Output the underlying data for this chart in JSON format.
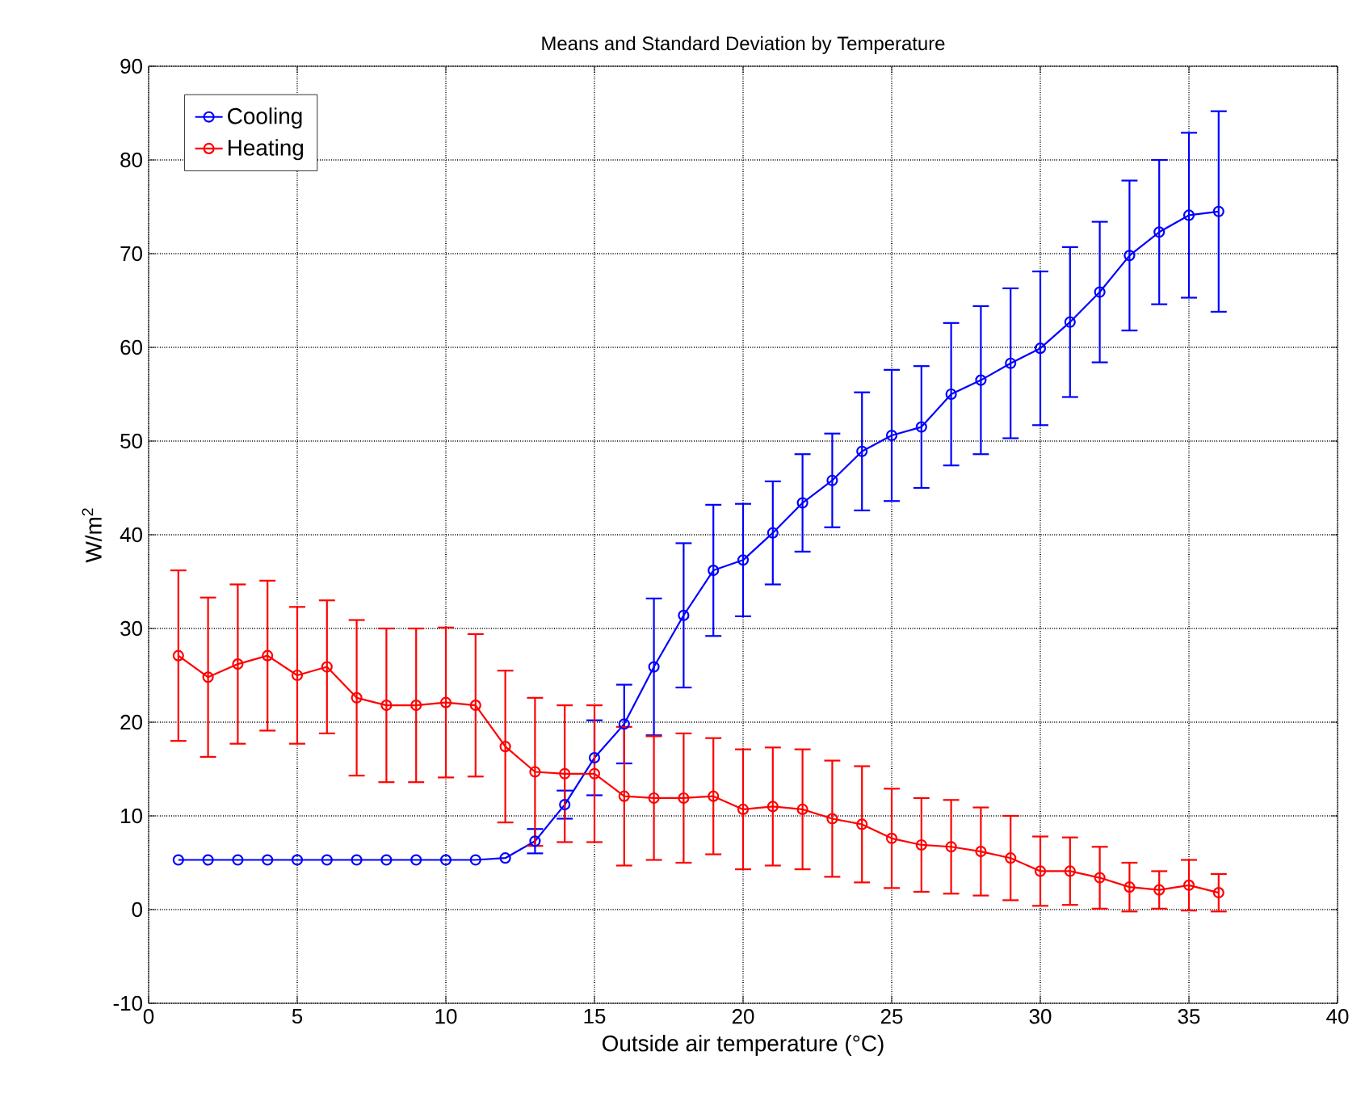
{
  "chart_data": {
    "type": "line",
    "title": "Means and Standard Deviation by Temperature",
    "xlabel": "Outside air temperature (°C)",
    "ylabel": "W/m$^{2}$",
    "x": [
      1,
      2,
      3,
      4,
      5,
      6,
      7,
      8,
      9,
      10,
      11,
      12,
      13,
      14,
      15,
      16,
      17,
      18,
      19,
      20,
      21,
      22,
      23,
      24,
      25,
      26,
      27,
      28,
      29,
      30,
      31,
      32,
      33,
      34,
      35,
      36
    ],
    "series": [
      {
        "name": "Cooling",
        "color": "#0000ff",
        "values": [
          5.3,
          5.3,
          5.3,
          5.3,
          5.3,
          5.3,
          5.3,
          5.3,
          5.3,
          5.3,
          5.3,
          5.5,
          7.3,
          11.2,
          16.2,
          19.8,
          25.9,
          31.4,
          36.2,
          37.3,
          40.2,
          43.4,
          45.8,
          48.9,
          50.6,
          51.5,
          55.0,
          56.5,
          58.3,
          59.9,
          62.7,
          65.9,
          69.8,
          72.3,
          74.1,
          74.5
        ],
        "errors": [
          null,
          null,
          null,
          null,
          null,
          null,
          null,
          null,
          null,
          null,
          null,
          null,
          1.3,
          1.5,
          4,
          4.2,
          7.3,
          7.7,
          7,
          6,
          5.5,
          5.2,
          5,
          6.3,
          7,
          6.5,
          7.6,
          7.9,
          8,
          8.2,
          8,
          7.5,
          8,
          7.7,
          8.8,
          10.7
        ]
      },
      {
        "name": "Heating",
        "color": "#ff0000",
        "values": [
          27.1,
          24.8,
          26.2,
          27.1,
          25.0,
          25.9,
          22.6,
          21.8,
          21.8,
          22.1,
          21.8,
          17.4,
          14.7,
          14.5,
          14.5,
          12.1,
          11.9,
          11.9,
          12.1,
          10.7,
          11.0,
          10.7,
          9.7,
          9.1,
          7.6,
          6.9,
          6.7,
          6.2,
          5.5,
          4.1,
          4.1,
          3.4,
          2.4,
          2.1,
          2.6,
          1.8
        ],
        "errors": [
          9.1,
          8.5,
          8.5,
          8,
          7.3,
          7.1,
          8.3,
          8.2,
          8.2,
          8,
          7.6,
          8.1,
          7.9,
          7.3,
          7.3,
          7.4,
          6.6,
          6.9,
          6.2,
          6.4,
          6.3,
          6.4,
          6.2,
          6.2,
          5.3,
          5,
          5,
          4.7,
          4.5,
          3.7,
          3.6,
          3.3,
          2.6,
          2,
          2.7,
          2
        ]
      }
    ],
    "xlim": [
      0,
      40
    ],
    "xticks": [
      0,
      5,
      10,
      15,
      20,
      25,
      30,
      35,
      40
    ],
    "ylim": [
      -10,
      90
    ],
    "yticks": [
      -10,
      0,
      10,
      20,
      30,
      40,
      50,
      60,
      70,
      80,
      90
    ],
    "grid": true,
    "legend": "top left",
    "marker": "circle",
    "line_style": "solid"
  }
}
